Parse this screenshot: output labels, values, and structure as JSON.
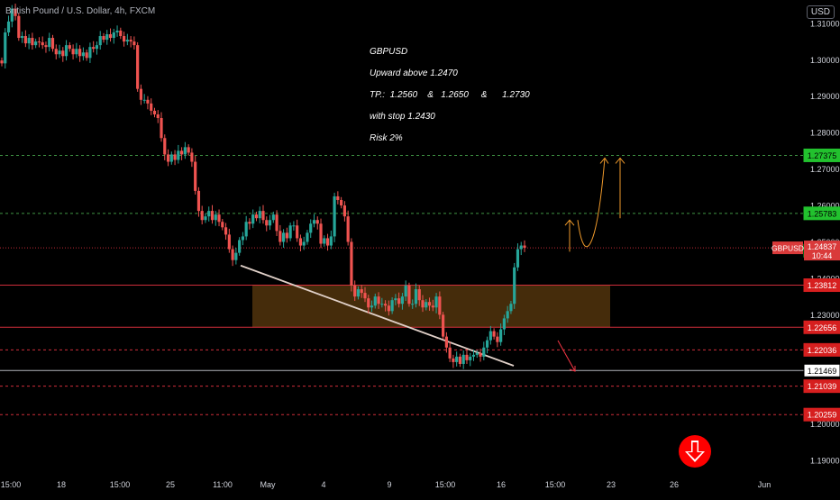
{
  "header": {
    "title": "British Pound / U.S. Dollar, 4h, FXCM",
    "currency": "USD"
  },
  "annotation": {
    "lines": [
      "GBPUSD",
      "Upward above 1.2470",
      "TP.:  1.2560    &   1.2650     &      1.2730",
      "with stop 1.2430",
      "Risk 2%"
    ]
  },
  "colors": {
    "up": "#26a69a",
    "down": "#ef5350",
    "green_level": "#4caf50",
    "red_level": "#f23645",
    "zone": "#5c3b0f",
    "trendline": "#e0d0c8",
    "projection": "#f09a2b",
    "white_level": "#d1d4dc"
  },
  "chart_data": {
    "type": "candlestick",
    "symbol": "GBPUSD",
    "y_axis": {
      "ticks": [
        "1.31000",
        "1.30000",
        "1.29000",
        "1.28000",
        "1.27000",
        "1.26000",
        "1.25000",
        "1.24000",
        "1.23000",
        "1.22000",
        "1.21000",
        "1.20000",
        "1.19000"
      ],
      "range": [
        1.1878,
        1.3164
      ]
    },
    "x_axis": {
      "labels": [
        "15:00",
        "18",
        "15:00",
        "25",
        "11:00",
        "May",
        "4",
        "9",
        "15:00",
        "16",
        "15:00",
        "23",
        "26",
        "Jun"
      ]
    },
    "price_levels": [
      {
        "label": "1.27375",
        "value": 1.27375,
        "style": "green-dashed"
      },
      {
        "label": "1.25783",
        "value": 1.25783,
        "style": "green-dashed"
      },
      {
        "label": "1.24758",
        "value": 1.24758,
        "style": "green-badge"
      },
      {
        "label": "1.23812",
        "value": 1.23812,
        "style": "red-solid"
      },
      {
        "label": "1.22656",
        "value": 1.22656,
        "style": "red-solid"
      },
      {
        "label": "1.22036",
        "value": 1.22036,
        "style": "red-dashed"
      },
      {
        "label": "1.21469",
        "value": 1.21469,
        "style": "white-solid"
      },
      {
        "label": "1.21039",
        "value": 1.21039,
        "style": "red-dashed"
      },
      {
        "label": "1.20259",
        "value": 1.20259,
        "style": "red-dashed"
      }
    ],
    "last_price": {
      "symbol": "GBPUSD",
      "price": "1.24837",
      "countdown": "10:44",
      "value": 1.24837
    },
    "zone": {
      "top": 1.23812,
      "bottom": 1.22656
    },
    "trendline": {
      "from": 1.2435,
      "to": 1.216
    },
    "projection_levels": [
      1.2473,
      1.256,
      1.273
    ],
    "closes": [
      1.299,
      1.3075,
      1.3105,
      1.314,
      1.312,
      1.306,
      1.3065,
      1.3045,
      1.306,
      1.304,
      1.305,
      1.3048,
      1.304,
      1.3035,
      1.306,
      1.303,
      1.3015,
      1.3025,
      1.301,
      1.304,
      1.303,
      1.3015,
      1.303,
      1.301,
      1.302,
      1.3005,
      1.3035,
      1.303,
      1.304,
      1.3065,
      1.3055,
      1.307,
      1.306,
      1.3075,
      1.308,
      1.3065,
      1.305,
      1.3055,
      1.305,
      1.304,
      1.292,
      1.289,
      1.289,
      1.288,
      1.286,
      1.285,
      1.284,
      1.2785,
      1.274,
      1.272,
      1.274,
      1.2725,
      1.275,
      1.274,
      1.276,
      1.2745,
      1.272,
      1.264,
      1.2585,
      1.256,
      1.257,
      1.2585,
      1.256,
      1.2575,
      1.2555,
      1.254,
      1.252,
      1.248,
      1.245,
      1.247,
      1.2505,
      1.2515,
      1.2555,
      1.255,
      1.2575,
      1.2565,
      1.2585,
      1.256,
      1.2545,
      1.256,
      1.2575,
      1.253,
      1.25,
      1.2525,
      1.251,
      1.2545,
      1.2545,
      1.251,
      1.249,
      1.25,
      1.2525,
      1.255,
      1.256,
      1.255,
      1.2495,
      1.251,
      1.249,
      1.2515,
      1.2625,
      1.2615,
      1.26,
      1.257,
      1.25,
      1.238,
      1.235,
      1.237,
      1.236,
      1.2345,
      1.232,
      1.2325,
      1.235,
      1.233,
      1.233,
      1.2325,
      1.231,
      1.234,
      1.2345,
      1.233,
      1.235,
      1.238,
      1.233,
      1.233,
      1.237,
      1.234,
      1.232,
      1.2335,
      1.2325,
      1.232,
      1.235,
      1.23,
      1.224,
      1.221,
      1.218,
      1.217,
      1.2185,
      1.2165,
      1.219,
      1.2175,
      1.2185,
      1.219,
      1.2195,
      1.2185,
      1.221,
      1.223,
      1.2255,
      1.224,
      1.2225,
      1.226,
      1.229,
      1.231,
      1.233,
      1.243,
      1.248,
      1.249,
      1.2484
    ]
  }
}
